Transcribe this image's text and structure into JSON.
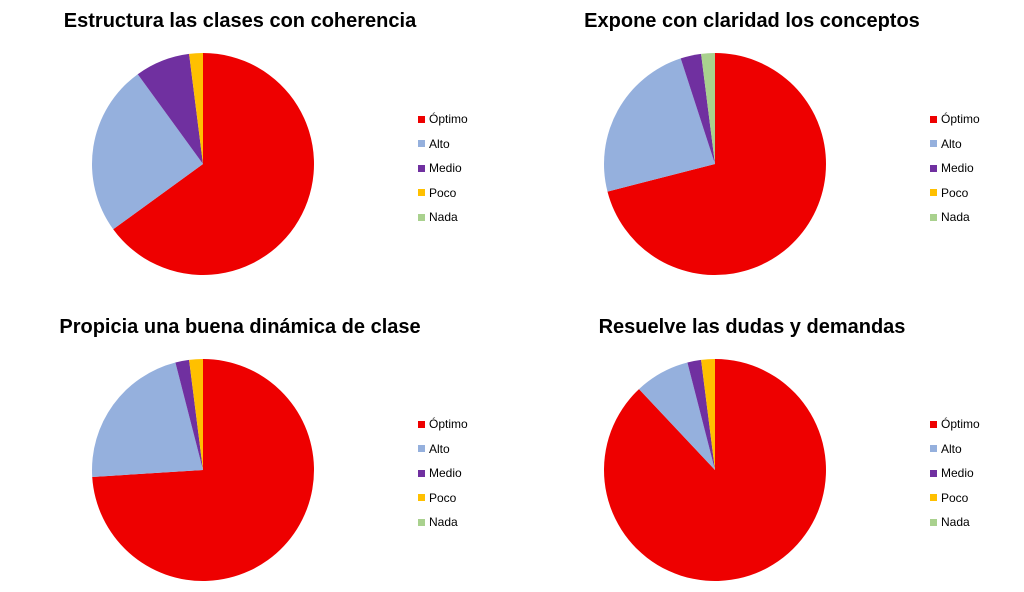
{
  "chart_data": [
    {
      "type": "pie",
      "title": "Estructura las clases con coherencia",
      "categories": [
        "Óptimo",
        "Alto",
        "Medio",
        "Poco",
        "Nada"
      ],
      "values": [
        65,
        25,
        8,
        2,
        0
      ],
      "colors": [
        "#ee0000",
        "#95b0dd",
        "#7030a0",
        "#ffc000",
        "#a9d18e"
      ],
      "legend": "right"
    },
    {
      "type": "pie",
      "title": "Expone con claridad los conceptos",
      "categories": [
        "Óptimo",
        "Alto",
        "Medio",
        "Poco",
        "Nada"
      ],
      "values": [
        71,
        24,
        3,
        0,
        2
      ],
      "colors": [
        "#ee0000",
        "#95b0dd",
        "#7030a0",
        "#ffc000",
        "#a9d18e"
      ],
      "legend": "right"
    },
    {
      "type": "pie",
      "title": "Propicia una buena dinámica de clase",
      "categories": [
        "Óptimo",
        "Alto",
        "Medio",
        "Poco",
        "Nada"
      ],
      "values": [
        74,
        22,
        2,
        2,
        0
      ],
      "colors": [
        "#ee0000",
        "#95b0dd",
        "#7030a0",
        "#ffc000",
        "#a9d18e"
      ],
      "legend": "right"
    },
    {
      "type": "pie",
      "title": "Resuelve las dudas y demandas",
      "categories": [
        "Óptimo",
        "Alto",
        "Medio",
        "Poco",
        "Nada"
      ],
      "values": [
        88,
        8,
        2,
        2,
        0
      ],
      "colors": [
        "#ee0000",
        "#95b0dd",
        "#7030a0",
        "#ffc000",
        "#a9d18e"
      ],
      "legend": "right"
    }
  ]
}
